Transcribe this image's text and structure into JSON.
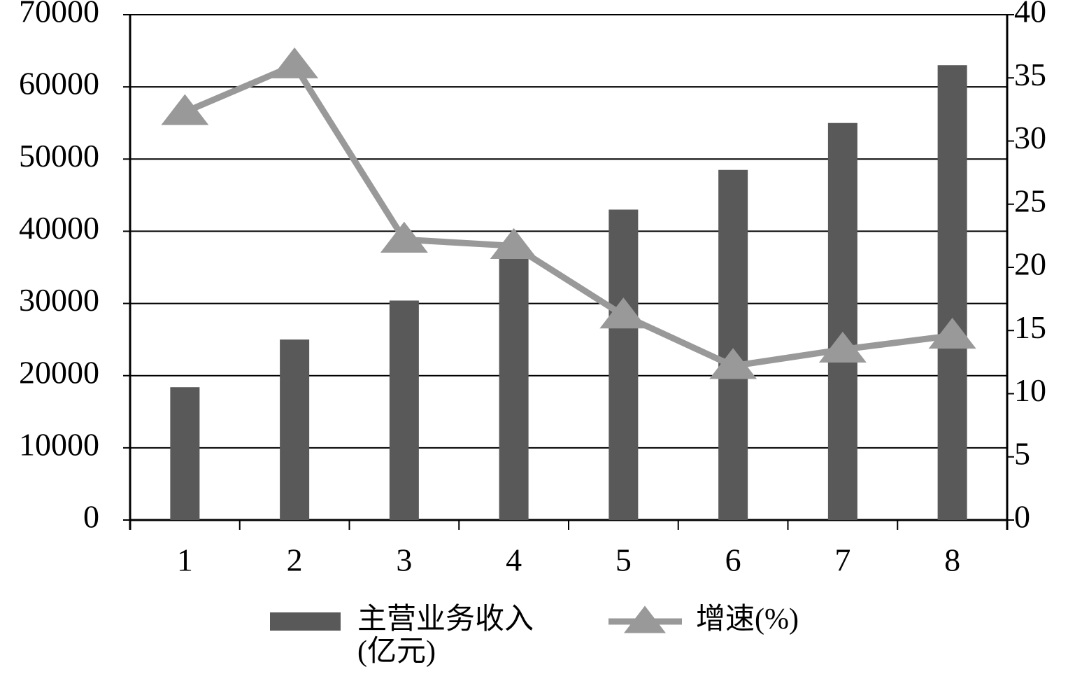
{
  "chart_data": {
    "type": "bar-line",
    "categories": [
      "1",
      "2",
      "3",
      "4",
      "5",
      "6",
      "7",
      "8"
    ],
    "series": [
      {
        "name": "主营业务收入(亿元)",
        "type": "bar",
        "color": "#595959",
        "values": [
          18400,
          25000,
          30400,
          37200,
          43000,
          48500,
          55000,
          63000
        ]
      },
      {
        "name": "增速(%)",
        "type": "line",
        "axis": "y2",
        "color": "#999999",
        "values": [
          32.3,
          36.0,
          22.2,
          21.7,
          16.2,
          12.2,
          13.5,
          14.6
        ]
      }
    ],
    "ylim": [
      0,
      70000
    ],
    "yticks": [
      0,
      10000,
      20000,
      30000,
      40000,
      50000,
      60000,
      70000
    ],
    "y2lim": [
      0,
      40
    ],
    "y2ticks": [
      0,
      5,
      10,
      15,
      20,
      25,
      30,
      35,
      40
    ],
    "grid": true,
    "legend": "bottom"
  }
}
